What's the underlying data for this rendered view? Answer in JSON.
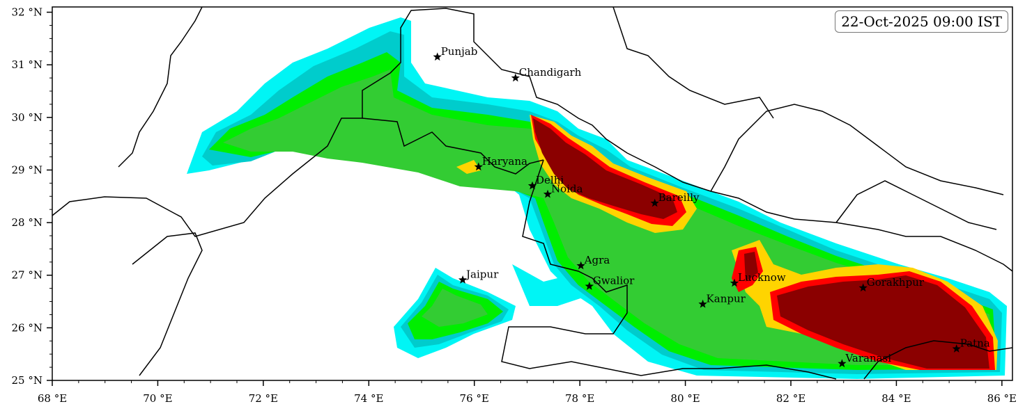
{
  "timestamp": "22-Oct-2025 09:00 IST",
  "colors": {
    "cyan": "#00f5f5",
    "teal": "#00cccc",
    "green": "#00ee00",
    "midgreen": "#33cc33",
    "yellow": "#ffd400",
    "red": "#ff0000",
    "darkred": "#8b0000"
  },
  "axes": {
    "x_ticks": [
      "68 °E",
      "70 °E",
      "72 °E",
      "74 °E",
      "76 °E",
      "78 °E",
      "80 °E",
      "82 °E",
      "84 °E",
      "86 °E"
    ],
    "y_ticks": [
      "25 °N",
      "26 °N",
      "27 °N",
      "28 °N",
      "29 °N",
      "30 °N",
      "31 °N",
      "32 °N"
    ],
    "lon_range": [
      68,
      86.2
    ],
    "lat_range": [
      25,
      32.1
    ]
  },
  "cities": [
    {
      "name": "Punjab",
      "lon": 75.3,
      "lat": 31.15
    },
    {
      "name": "Chandigarh",
      "lon": 76.78,
      "lat": 30.75
    },
    {
      "name": "Haryana",
      "lon": 76.08,
      "lat": 29.06
    },
    {
      "name": "Delhi",
      "lon": 77.1,
      "lat": 28.7
    },
    {
      "name": "Noida",
      "lon": 77.39,
      "lat": 28.54
    },
    {
      "name": "Bareilly",
      "lon": 79.42,
      "lat": 28.37
    },
    {
      "name": "Jaipur",
      "lon": 75.78,
      "lat": 26.91
    },
    {
      "name": "Agra",
      "lon": 78.02,
      "lat": 27.18
    },
    {
      "name": "Gwalior",
      "lon": 78.18,
      "lat": 26.79
    },
    {
      "name": "Lucknow",
      "lon": 80.93,
      "lat": 26.85
    },
    {
      "name": "Kanpur",
      "lon": 80.33,
      "lat": 26.45
    },
    {
      "name": "Gorakhpur",
      "lon": 83.37,
      "lat": 26.76
    },
    {
      "name": "Varanasi",
      "lon": 82.97,
      "lat": 25.32
    },
    {
      "name": "Patna",
      "lon": 85.14,
      "lat": 25.6
    }
  ]
}
